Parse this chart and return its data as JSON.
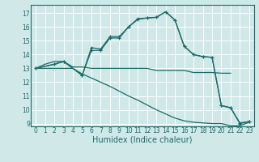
{
  "xlabel": "Humidex (Indice chaleur)",
  "xlim": [
    -0.5,
    23.5
  ],
  "ylim": [
    8.8,
    17.6
  ],
  "yticks": [
    9,
    10,
    11,
    12,
    13,
    14,
    15,
    16,
    17
  ],
  "xticks": [
    0,
    1,
    2,
    3,
    4,
    5,
    6,
    7,
    8,
    9,
    10,
    11,
    12,
    13,
    14,
    15,
    16,
    17,
    18,
    19,
    20,
    21,
    22,
    23
  ],
  "bg_color": "#d0e8e8",
  "line_color": "#1a6b6b",
  "grid_color": "#ffffff",
  "line1_x": [
    0,
    1,
    2,
    3,
    4,
    5,
    6,
    7,
    8,
    9,
    10,
    11,
    12,
    13,
    14,
    15,
    16,
    17,
    18,
    19,
    20,
    21
  ],
  "line1_y": [
    13.0,
    13.3,
    13.5,
    13.5,
    13.1,
    13.1,
    13.0,
    13.0,
    13.0,
    13.0,
    13.0,
    13.0,
    13.0,
    12.85,
    12.85,
    12.85,
    12.85,
    12.7,
    12.7,
    12.7,
    12.65,
    12.65
  ],
  "line2_x": [
    0,
    1,
    2,
    3,
    4,
    5,
    6,
    7,
    8,
    9,
    10,
    11,
    12,
    13,
    14,
    15,
    16,
    17,
    18,
    19,
    20,
    21,
    22,
    23
  ],
  "line2_y": [
    13.0,
    13.0,
    13.0,
    13.0,
    13.0,
    12.6,
    12.3,
    12.0,
    11.7,
    11.35,
    11.0,
    10.7,
    10.35,
    10.0,
    9.7,
    9.4,
    9.2,
    9.1,
    9.05,
    9.0,
    9.0,
    8.85,
    8.85,
    9.1
  ],
  "line3_x": [
    0,
    2,
    3,
    5,
    6,
    7,
    8,
    9,
    10,
    11,
    12,
    13,
    14,
    15,
    16,
    17,
    18,
    19,
    20,
    21,
    22,
    23
  ],
  "line3_y": [
    13.0,
    13.3,
    13.5,
    12.5,
    14.5,
    14.4,
    15.3,
    15.3,
    16.0,
    16.6,
    16.65,
    16.7,
    17.1,
    16.5,
    14.6,
    14.0,
    13.85,
    13.8,
    10.3,
    10.15,
    9.0,
    9.15
  ],
  "line4_x": [
    0,
    2,
    3,
    5,
    6,
    7,
    8,
    9,
    10,
    11,
    12,
    13,
    14,
    15,
    16,
    17,
    18,
    19,
    20,
    21,
    22,
    23
  ],
  "line4_y": [
    13.0,
    13.3,
    13.5,
    12.5,
    14.3,
    14.3,
    15.2,
    15.2,
    16.0,
    16.55,
    16.65,
    16.7,
    17.1,
    16.5,
    14.6,
    14.0,
    13.85,
    13.8,
    10.3,
    10.15,
    9.05,
    9.15
  ]
}
